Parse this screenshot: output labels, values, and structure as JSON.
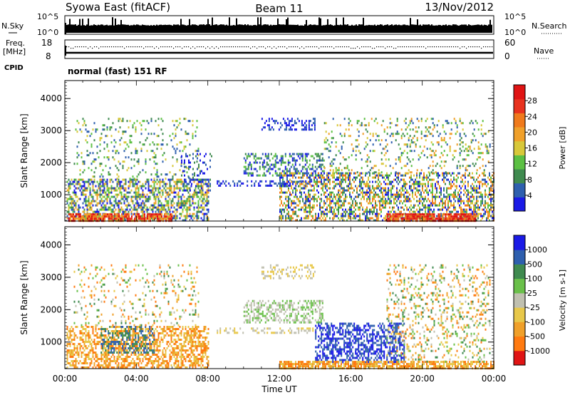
{
  "header": {
    "station": "Syowa East (fitACF)",
    "beam": "Beam 11",
    "date": "13/Nov/2012"
  },
  "mode": "normal (fast) 151 RF",
  "sky_panel": {
    "left_label": "N.Sky",
    "right_label": "N.Search",
    "left_ticks": [
      "10^5",
      "10^0"
    ],
    "right_ticks": [
      "10^5",
      "10^0"
    ]
  },
  "freq_panel": {
    "left_label_1": "Freq.",
    "left_label_2": "[MHz]",
    "left_ticks": [
      "18",
      "8"
    ],
    "right_label": "Nave",
    "right_ticks": [
      "60",
      "0"
    ]
  },
  "cpid_label": "CPID",
  "x_axis": {
    "label": "Time UT",
    "ticks": [
      "00:00",
      "04:00",
      "08:00",
      "12:00",
      "16:00",
      "20:00",
      "00:00"
    ]
  },
  "colors": {
    "power": [
      "#1a1ae6",
      "#2e5fae",
      "#3f8a4f",
      "#5cc043",
      "#d8c83a",
      "#f0a02a",
      "#f07a1c",
      "#e8321e",
      "#e01414"
    ],
    "velocity": [
      "#e01414",
      "#ff7a10",
      "#f0a02a",
      "#e8c84a",
      "#c0c0b0",
      "#6ac04a",
      "#3f8a4f",
      "#2e5fae",
      "#1a1ae6"
    ]
  },
  "chart_data": [
    {
      "type": "heatmap",
      "quantity": "power",
      "ylabel": "Slant Range [km]",
      "xlabel": "",
      "yticks": [
        1000,
        2000,
        3000,
        4000
      ],
      "ylim": [
        180,
        4560
      ],
      "xlim_hours": [
        0,
        24
      ],
      "colorbar_label": "Power [dB]",
      "colorbar_ticks": [
        "4",
        "8",
        "12",
        "16",
        "20",
        "24",
        "28"
      ],
      "colorbar_range": [
        0,
        32
      ],
      "blobs": [
        {
          "t0": 0.1,
          "t1": 8.0,
          "r0": 180,
          "r1": 1500,
          "density": 0.55,
          "cmin": 0,
          "cmax": 5
        },
        {
          "t0": 0.2,
          "t1": 6.0,
          "r0": 180,
          "r1": 420,
          "density": 0.8,
          "cmin": 5,
          "cmax": 8
        },
        {
          "t0": 0.5,
          "t1": 7.5,
          "r0": 1500,
          "r1": 3400,
          "density": 0.12,
          "cmin": 1,
          "cmax": 4
        },
        {
          "t0": 6.5,
          "t1": 8.2,
          "r0": 1100,
          "r1": 2300,
          "density": 0.18,
          "cmin": 0,
          "cmax": 2
        },
        {
          "t0": 8.5,
          "t1": 14.0,
          "r0": 1300,
          "r1": 1450,
          "density": 0.35,
          "cmin": 0,
          "cmax": 1
        },
        {
          "t0": 10.0,
          "t1": 14.5,
          "r0": 1600,
          "r1": 2300,
          "density": 0.45,
          "cmin": 0,
          "cmax": 3
        },
        {
          "t0": 11.0,
          "t1": 14.0,
          "r0": 3000,
          "r1": 3400,
          "density": 0.35,
          "cmin": 0,
          "cmax": 1
        },
        {
          "t0": 12.0,
          "t1": 24.0,
          "r0": 180,
          "r1": 1700,
          "density": 0.5,
          "cmin": 0,
          "cmax": 6
        },
        {
          "t0": 18.0,
          "t1": 23.0,
          "r0": 180,
          "r1": 420,
          "density": 0.85,
          "cmin": 6,
          "cmax": 8
        },
        {
          "t0": 14.5,
          "t1": 23.8,
          "r0": 1700,
          "r1": 3400,
          "density": 0.15,
          "cmin": 1,
          "cmax": 5
        }
      ]
    },
    {
      "type": "heatmap",
      "quantity": "velocity",
      "ylabel": "Slant Range [km]",
      "xlabel": "Time UT",
      "yticks": [
        1000,
        2000,
        3000,
        4000
      ],
      "ylim": [
        180,
        4560
      ],
      "xlim_hours": [
        0,
        24
      ],
      "colorbar_label": "Velocity [m s-1]",
      "colorbar_ticks": [
        "-1000",
        "-500",
        "-100",
        "-25",
        "25",
        "100",
        "500",
        "1000"
      ],
      "colorbar_range": [
        -2000,
        2000
      ],
      "blobs": [
        {
          "t0": 0.1,
          "t1": 8.0,
          "r0": 180,
          "r1": 1500,
          "density": 0.55,
          "cmin": 1,
          "cmax": 3
        },
        {
          "t0": 2.0,
          "t1": 5.0,
          "r0": 700,
          "r1": 1500,
          "density": 0.35,
          "cmin": 6,
          "cmax": 7
        },
        {
          "t0": 0.5,
          "t1": 7.5,
          "r0": 1500,
          "r1": 3400,
          "density": 0.12,
          "cmin": 1,
          "cmax": 6
        },
        {
          "t0": 8.5,
          "t1": 14.0,
          "r0": 1300,
          "r1": 1450,
          "density": 0.3,
          "cmin": 3,
          "cmax": 4
        },
        {
          "t0": 10.0,
          "t1": 14.5,
          "r0": 1600,
          "r1": 2300,
          "density": 0.45,
          "cmin": 4,
          "cmax": 5
        },
        {
          "t0": 11.0,
          "t1": 14.0,
          "r0": 3000,
          "r1": 3400,
          "density": 0.3,
          "cmin": 3,
          "cmax": 4
        },
        {
          "t0": 14.0,
          "t1": 19.0,
          "r0": 400,
          "r1": 1600,
          "density": 0.5,
          "cmin": 7,
          "cmax": 8
        },
        {
          "t0": 12.0,
          "t1": 24.0,
          "r0": 180,
          "r1": 420,
          "density": 0.75,
          "cmin": 1,
          "cmax": 3
        },
        {
          "t0": 18.0,
          "t1": 23.8,
          "r0": 420,
          "r1": 3400,
          "density": 0.2,
          "cmin": 1,
          "cmax": 6
        }
      ]
    }
  ]
}
